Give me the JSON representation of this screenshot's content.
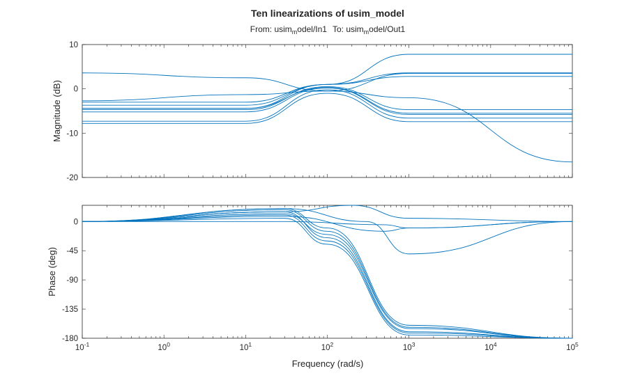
{
  "chart_data": {
    "type": "line",
    "title": "Ten linearizations of usim_model",
    "subtitle": {
      "from_prefix": "From: ",
      "from_a": "usim",
      "from_sub": "m",
      "from_b": "odel/In1",
      "to_prefix": "To: ",
      "to_a": "usim",
      "to_sub": "m",
      "to_b": "odel/Out1"
    },
    "xlabel": "Frequency (rad/s)",
    "xscale": "log",
    "xlim": [
      0.1,
      100000
    ],
    "x_ticks": [
      {
        "base": "10",
        "exp": "-1"
      },
      {
        "base": "10",
        "exp": "0"
      },
      {
        "base": "10",
        "exp": "1"
      },
      {
        "base": "10",
        "exp": "2"
      },
      {
        "base": "10",
        "exp": "3"
      },
      {
        "base": "10",
        "exp": "4"
      },
      {
        "base": "10",
        "exp": "5"
      }
    ],
    "line_color": "#0072bd",
    "grid": false,
    "panels": [
      {
        "name": "magnitude",
        "ylabel": "Magnitude (dB)",
        "ylim": [
          -20,
          10
        ],
        "y_ticks": [
          "10",
          "0",
          "-10",
          "-20"
        ],
        "series": [
          {
            "x": [
              0.1,
              10,
              100,
              1000,
              100000
            ],
            "y": [
              3.6,
              2.5,
              -0.5,
              -2,
              -16.5
            ]
          },
          {
            "x": [
              0.1,
              10,
              100,
              1000,
              100000
            ],
            "y": [
              -2.7,
              -1.3,
              -0.5,
              3.5,
              3.5
            ]
          },
          {
            "x": [
              0.1,
              10,
              100,
              1000,
              100000
            ],
            "y": [
              -3.0,
              -3.0,
              1.0,
              3.6,
              3.6
            ]
          },
          {
            "x": [
              0.1,
              10,
              100,
              1000,
              100000
            ],
            "y": [
              -3.7,
              -3.7,
              1.0,
              2.8,
              2.8
            ]
          },
          {
            "x": [
              0.1,
              10,
              100,
              1000,
              100000
            ],
            "y": [
              -4.4,
              -4.4,
              1.0,
              7.8,
              7.8
            ]
          },
          {
            "x": [
              0.1,
              10,
              100,
              1000,
              100000
            ],
            "y": [
              -4.7,
              -4.7,
              0.5,
              -4.7,
              -4.7
            ]
          },
          {
            "x": [
              0.1,
              10,
              100,
              1000,
              100000
            ],
            "y": [
              -4.4,
              -4.4,
              0.3,
              -5.5,
              -5.5
            ]
          },
          {
            "x": [
              0.1,
              10,
              100,
              1000,
              100000
            ],
            "y": [
              -5.2,
              -5.2,
              0.2,
              -5.8,
              -5.8
            ]
          },
          {
            "x": [
              0.1,
              10,
              100,
              1000,
              100000
            ],
            "y": [
              -7.3,
              -7.3,
              -0.2,
              -6.6,
              -6.6
            ]
          },
          {
            "x": [
              0.1,
              10,
              100,
              1000,
              100000
            ],
            "y": [
              -7.8,
              -7.8,
              -1.0,
              -7.4,
              -7.4
            ]
          }
        ]
      },
      {
        "name": "phase",
        "ylabel": "Phase (deg)",
        "ylim": [
          -180,
          25
        ],
        "y_ticks": [
          "0",
          "-45",
          "-90",
          "-135",
          "-180"
        ],
        "series": [
          {
            "x": [
              0.1,
              30,
              100,
              1000,
              100000
            ],
            "y": [
              0,
              20,
              -10,
              -160,
              -180
            ]
          },
          {
            "x": [
              0.1,
              30,
              100,
              1000,
              100000
            ],
            "y": [
              0,
              18,
              -15,
              -163,
              -180
            ]
          },
          {
            "x": [
              0.1,
              30,
              100,
              1000,
              100000
            ],
            "y": [
              0,
              15,
              -25,
              -170,
              -180
            ]
          },
          {
            "x": [
              0.1,
              30,
              100,
              1000,
              100000
            ],
            "y": [
              0,
              10,
              -30,
              -172,
              -180
            ]
          },
          {
            "x": [
              0.1,
              30,
              100,
              1000,
              100000
            ],
            "y": [
              0,
              12,
              -20,
              -165,
              -180
            ]
          },
          {
            "x": [
              0.1,
              30,
              100,
              1000,
              100000
            ],
            "y": [
              0,
              5,
              -35,
              -175,
              -180
            ]
          },
          {
            "x": [
              0.1,
              30,
              200,
              1000,
              100000
            ],
            "y": [
              0,
              15,
              25,
              5,
              0
            ]
          },
          {
            "x": [
              0.1,
              30,
              300,
              1000,
              100000
            ],
            "y": [
              0,
              20,
              0,
              -50,
              0
            ]
          },
          {
            "x": [
              0.1,
              30,
              500,
              1000,
              100000
            ],
            "y": [
              0,
              8,
              -15,
              -10,
              0
            ]
          },
          {
            "x": [
              0.1,
              30,
              500,
              1000,
              100000
            ],
            "y": [
              0,
              0,
              -5,
              -10,
              0
            ]
          }
        ]
      }
    ]
  }
}
